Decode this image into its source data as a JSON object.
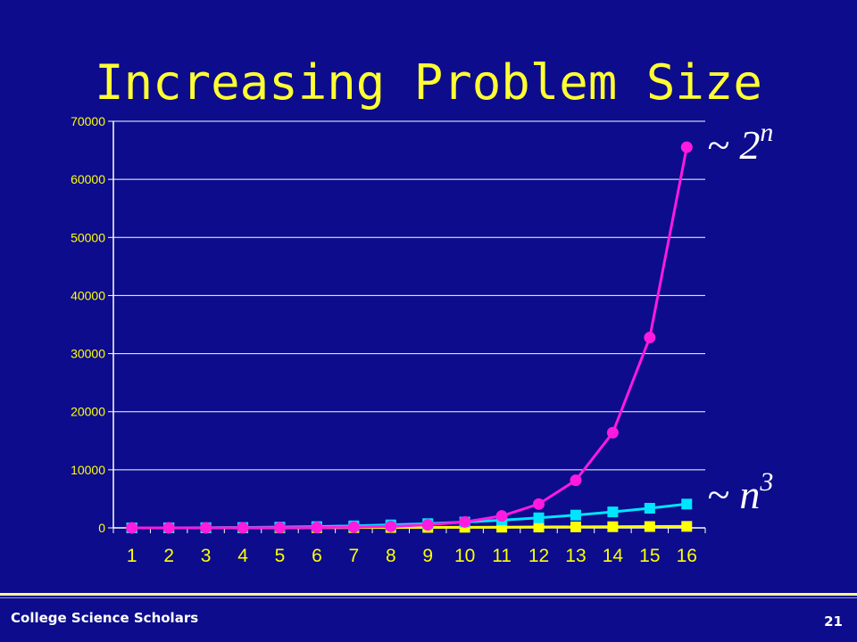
{
  "slide": {
    "title": "Increasing Problem Size",
    "footer_left": "College Science Scholars",
    "page_number": "21"
  },
  "annotations": {
    "exp_prefix": "~ 2",
    "exp_sup": "n",
    "cubic_prefix": "~ n",
    "cubic_sup": "3"
  },
  "colors": {
    "background": "#0C0C8C",
    "title": "#FFFF33",
    "exponential": "#FF1AE0",
    "cubic": "#00E5FF",
    "quadratic": "#FFFF00",
    "axis_text": "#FFFF00",
    "gridline": "#FFFFFF"
  },
  "chart_data": {
    "type": "line",
    "categories": [
      "1",
      "2",
      "3",
      "4",
      "5",
      "6",
      "7",
      "8",
      "9",
      "10",
      "11",
      "12",
      "13",
      "14",
      "15",
      "16"
    ],
    "ylim": [
      0,
      70000
    ],
    "yticks": [
      0,
      10000,
      20000,
      30000,
      40000,
      50000,
      60000,
      70000
    ],
    "grid": true,
    "legend": "none",
    "series": [
      {
        "values": [
          1,
          4,
          9,
          16,
          25,
          36,
          49,
          64,
          81,
          100,
          121,
          144,
          169,
          196,
          225,
          256
        ],
        "marker": "square",
        "color": "#FFFF00"
      },
      {
        "values": [
          1,
          8,
          27,
          64,
          125,
          216,
          343,
          512,
          729,
          1000,
          1331,
          1728,
          2197,
          2744,
          3375,
          4096
        ],
        "marker": "square",
        "color": "#00E5FF"
      },
      {
        "values": [
          2,
          4,
          8,
          16,
          32,
          64,
          128,
          256,
          512,
          1024,
          2048,
          4096,
          8192,
          16384,
          32768,
          65536
        ],
        "marker": "circle",
        "color": "#FF1AE0"
      }
    ]
  }
}
